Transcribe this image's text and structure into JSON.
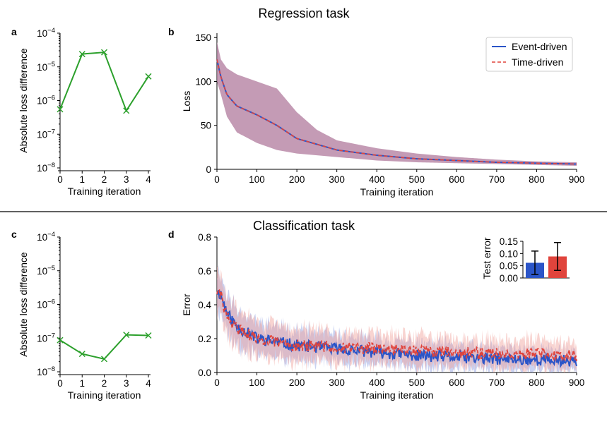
{
  "colors": {
    "green": "#2ca02c",
    "event": "#2b55c8",
    "time": "#e0443c",
    "band_purple": "#b07a9c",
    "event_band": "#8a9be0",
    "time_band": "#f0a09a",
    "divider": "#000000"
  },
  "titles": {
    "regression": "Regression task",
    "classification": "Classification task"
  },
  "panel_labels": {
    "a": "a",
    "b": "b",
    "c": "c",
    "d": "d"
  },
  "chart_data": [
    {
      "id": "a",
      "type": "line",
      "xlabel": "Training iteration",
      "ylabel": "Absolute loss difference",
      "yscale": "log",
      "ylim": [
        1e-08,
        0.0001
      ],
      "x": [
        0,
        1,
        2,
        3,
        4
      ],
      "y": [
        5.5e-07,
        2.4e-05,
        2.7e-05,
        5e-07,
        5.2e-06
      ],
      "x_ticks": [
        "0",
        "1",
        "2",
        "3",
        "4"
      ],
      "y_ticks": [
        {
          "base": "10",
          "exp": "−8",
          "value": 1e-08
        },
        {
          "base": "10",
          "exp": "−7",
          "value": 1e-07
        },
        {
          "base": "10",
          "exp": "−6",
          "value": 1e-06
        },
        {
          "base": "10",
          "exp": "−5",
          "value": 1e-05
        },
        {
          "base": "10",
          "exp": "−4",
          "value": 0.0001
        }
      ],
      "marker": "x"
    },
    {
      "id": "b",
      "type": "line",
      "xlabel": "Training iteration",
      "ylabel": "Loss",
      "xlim": [
        0,
        900
      ],
      "ylim": [
        0,
        155
      ],
      "x_ticks": [
        "0",
        "100",
        "200",
        "300",
        "400",
        "500",
        "600",
        "700",
        "800",
        "900"
      ],
      "y_ticks": [
        "0",
        "50",
        "100",
        "150"
      ],
      "series": [
        {
          "name": "Event-driven",
          "style": "solid"
        },
        {
          "name": "Time-driven",
          "style": "dashed"
        }
      ],
      "mean_knots": [
        [
          0,
          125
        ],
        [
          10,
          105
        ],
        [
          25,
          85
        ],
        [
          50,
          72
        ],
        [
          100,
          62
        ],
        [
          150,
          50
        ],
        [
          200,
          35
        ],
        [
          300,
          22
        ],
        [
          400,
          16
        ],
        [
          500,
          12
        ],
        [
          600,
          10
        ],
        [
          700,
          8
        ],
        [
          800,
          7
        ],
        [
          900,
          6
        ]
      ],
      "upper_knots": [
        [
          0,
          145
        ],
        [
          10,
          125
        ],
        [
          25,
          115
        ],
        [
          50,
          108
        ],
        [
          100,
          100
        ],
        [
          150,
          92
        ],
        [
          200,
          65
        ],
        [
          250,
          45
        ],
        [
          300,
          33
        ],
        [
          400,
          24
        ],
        [
          500,
          18
        ],
        [
          600,
          14
        ],
        [
          700,
          11
        ],
        [
          800,
          9
        ],
        [
          900,
          8
        ]
      ],
      "lower_knots": [
        [
          0,
          100
        ],
        [
          10,
          85
        ],
        [
          25,
          60
        ],
        [
          50,
          42
        ],
        [
          100,
          30
        ],
        [
          150,
          22
        ],
        [
          200,
          18
        ],
        [
          300,
          14
        ],
        [
          400,
          10
        ],
        [
          500,
          8
        ],
        [
          600,
          7
        ],
        [
          700,
          6
        ],
        [
          800,
          5
        ],
        [
          900,
          4
        ]
      ],
      "legend_position": "top-right"
    },
    {
      "id": "c",
      "type": "line",
      "xlabel": "Training iteration",
      "ylabel": "Absolute loss difference",
      "yscale": "log",
      "ylim": [
        1e-08,
        0.0001
      ],
      "x": [
        0,
        1,
        2,
        3,
        4
      ],
      "y": [
        8.7e-08,
        3.4e-08,
        2.4e-08,
        1.25e-07,
        1.2e-07
      ],
      "x_ticks": [
        "0",
        "1",
        "2",
        "3",
        "4"
      ],
      "y_ticks": [
        {
          "base": "10",
          "exp": "−8",
          "value": 1e-08
        },
        {
          "base": "10",
          "exp": "−7",
          "value": 1e-07
        },
        {
          "base": "10",
          "exp": "−6",
          "value": 1e-06
        },
        {
          "base": "10",
          "exp": "−5",
          "value": 1e-05
        },
        {
          "base": "10",
          "exp": "−4",
          "value": 0.0001
        }
      ],
      "marker": "x"
    },
    {
      "id": "d",
      "type": "line",
      "xlabel": "Training iteration",
      "ylabel": "Error",
      "xlim": [
        0,
        900
      ],
      "ylim": [
        0,
        0.8
      ],
      "x_ticks": [
        "0",
        "100",
        "200",
        "300",
        "400",
        "500",
        "600",
        "700",
        "800",
        "900"
      ],
      "y_ticks": [
        "0.0",
        "0.2",
        "0.4",
        "0.6",
        "0.8"
      ],
      "series": [
        {
          "name": "Event-driven",
          "mean_knots": [
            [
              0,
              0.48
            ],
            [
              10,
              0.46
            ],
            [
              25,
              0.35
            ],
            [
              50,
              0.27
            ],
            [
              100,
              0.2
            ],
            [
              150,
              0.18
            ],
            [
              200,
              0.16
            ],
            [
              300,
              0.14
            ],
            [
              400,
              0.12
            ],
            [
              500,
              0.1
            ],
            [
              600,
              0.09
            ],
            [
              700,
              0.08
            ],
            [
              800,
              0.075
            ],
            [
              900,
              0.07
            ]
          ],
          "noise": 0.035,
          "band_knots": [
            [
              0,
              0.12
            ],
            [
              100,
              0.1
            ],
            [
              300,
              0.08
            ],
            [
              900,
              0.06
            ]
          ]
        },
        {
          "name": "Time-driven",
          "mean_knots": [
            [
              0,
              0.48
            ],
            [
              10,
              0.45
            ],
            [
              25,
              0.33
            ],
            [
              50,
              0.26
            ],
            [
              100,
              0.2
            ],
            [
              150,
              0.18
            ],
            [
              200,
              0.16
            ],
            [
              300,
              0.15
            ],
            [
              400,
              0.14
            ],
            [
              500,
              0.13
            ],
            [
              600,
              0.12
            ],
            [
              700,
              0.11
            ],
            [
              800,
              0.11
            ],
            [
              900,
              0.1
            ]
          ],
          "noise": 0.035,
          "band_knots": [
            [
              0,
              0.12
            ],
            [
              100,
              0.1
            ],
            [
              300,
              0.09
            ],
            [
              900,
              0.08
            ]
          ]
        }
      ]
    },
    {
      "id": "d-inset",
      "type": "bar",
      "ylabel": "Test error",
      "ylim": [
        0,
        0.15
      ],
      "y_ticks": [
        "0.00",
        "0.05",
        "0.10",
        "0.15"
      ],
      "categories": [
        "Event-driven",
        "Time-driven"
      ],
      "values": [
        0.062,
        0.088
      ],
      "errors": [
        0.048,
        0.057
      ]
    }
  ]
}
